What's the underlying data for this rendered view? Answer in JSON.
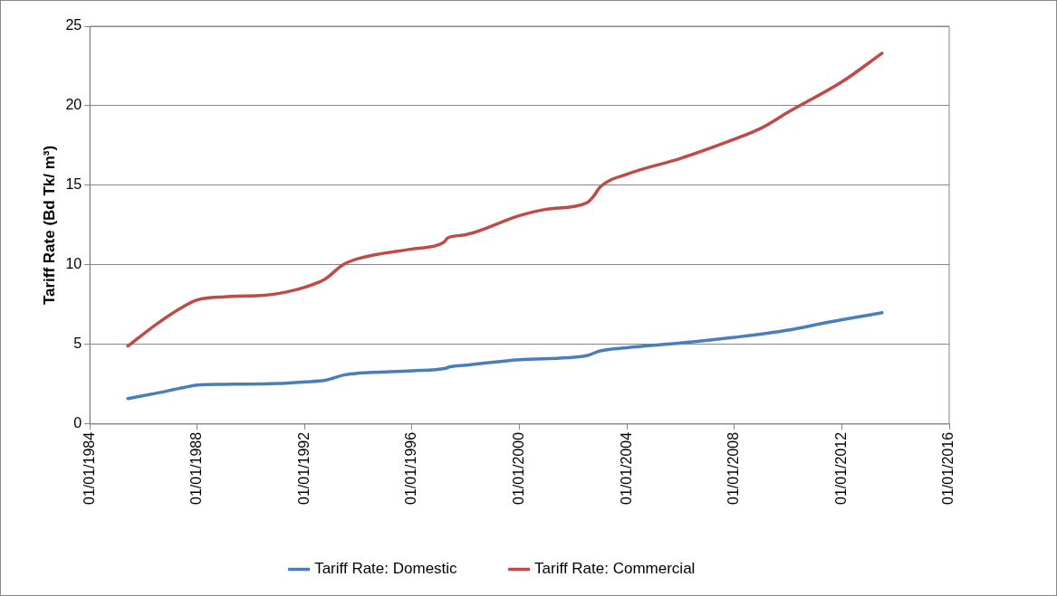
{
  "chart_data": {
    "type": "line",
    "ylabel": "Tariff Rate (Bd Tk/ m³)",
    "xlim": [
      "1984-01-01",
      "2016-01-01"
    ],
    "xticks": [
      {
        "value": "1984-01-01",
        "label": "01/01/1984"
      },
      {
        "value": "1988-01-01",
        "label": "01/01/1988"
      },
      {
        "value": "1992-01-01",
        "label": "01/01/1992"
      },
      {
        "value": "1996-01-01",
        "label": "01/01/1996"
      },
      {
        "value": "2000-01-01",
        "label": "01/01/2000"
      },
      {
        "value": "2004-01-01",
        "label": "01/01/2004"
      },
      {
        "value": "2008-01-01",
        "label": "01/01/2008"
      },
      {
        "value": "2012-01-01",
        "label": "01/01/2012"
      },
      {
        "value": "2016-01-01",
        "label": "01/01/2016"
      }
    ],
    "ylim": [
      0,
      25
    ],
    "yticks": [
      0,
      5,
      10,
      15,
      20,
      25
    ],
    "grid": "y",
    "legend": "bottom",
    "marker": "none",
    "line_style": "solid",
    "series": [
      {
        "name": "Tariff Rate: Domestic",
        "color": "#4a7ebb",
        "x": [
          "1985-06-01",
          "1986-07-01",
          "1987-07-01",
          "1988-01-01",
          "1989-01-01",
          "1991-01-01",
          "1992-01-01",
          "1992-10-01",
          "1993-07-01",
          "1994-01-01",
          "1996-01-01",
          "1997-04-01",
          "1997-06-01",
          "1998-01-01",
          "2000-01-01",
          "2002-07-01",
          "2003-01-01",
          "2004-01-01",
          "2006-01-01",
          "2008-01-01",
          "2010-01-01",
          "2011-07-01",
          "2013-07-01"
        ],
        "values": [
          1.6,
          1.95,
          2.3,
          2.45,
          2.5,
          2.55,
          2.65,
          2.75,
          3.1,
          3.2,
          3.35,
          3.5,
          3.6,
          3.7,
          4.05,
          4.3,
          4.6,
          4.8,
          5.1,
          5.45,
          5.9,
          6.4,
          7.0
        ]
      },
      {
        "name": "Tariff Rate: Commercial",
        "color": "#be4b48",
        "x": [
          "1985-06-01",
          "1986-07-01",
          "1987-07-01",
          "1988-01-01",
          "1989-01-01",
          "1990-07-01",
          "1991-01-01",
          "1992-01-01",
          "1992-10-01",
          "1993-06-01",
          "1994-01-01",
          "1996-01-01",
          "1997-03-01",
          "1997-05-01",
          "1998-01-01",
          "2000-01-01",
          "2001-01-01",
          "2002-07-01",
          "2002-10-01",
          "2003-01-01",
          "2004-01-01",
          "2006-01-01",
          "2008-01-01",
          "2009-01-01",
          "2010-01-01",
          "2012-01-01",
          "2013-07-01"
        ],
        "values": [
          4.9,
          6.3,
          7.4,
          7.8,
          8.0,
          8.1,
          8.2,
          8.6,
          9.1,
          10.0,
          10.4,
          11.0,
          11.4,
          11.7,
          11.9,
          13.1,
          13.5,
          13.9,
          14.3,
          14.9,
          15.7,
          16.7,
          17.9,
          18.6,
          19.6,
          21.5,
          23.3
        ]
      }
    ]
  }
}
